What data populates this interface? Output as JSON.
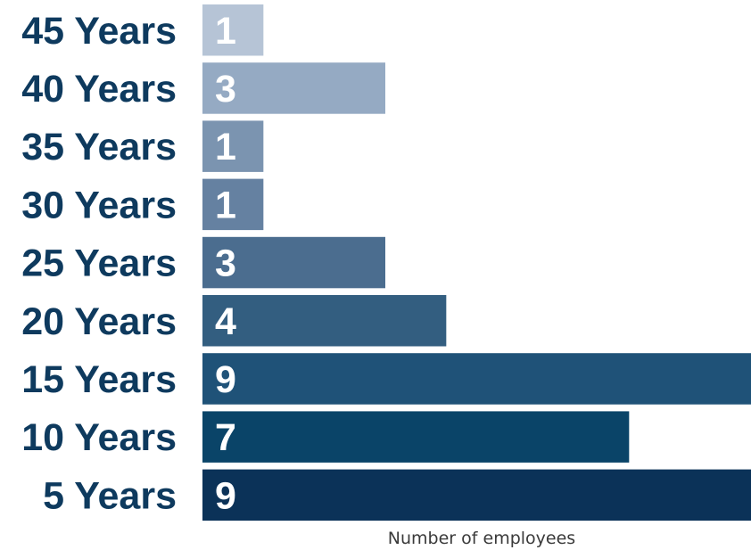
{
  "chart_data": {
    "type": "bar",
    "orientation": "horizontal",
    "categories": [
      "45 Years",
      "40 Years",
      "35 Years",
      "30 Years",
      "25 Years",
      "20 Years",
      "15 Years",
      "10 Years",
      "5 Years"
    ],
    "values": [
      1,
      3,
      1,
      1,
      3,
      4,
      9,
      7,
      9
    ],
    "data_labels": [
      "1",
      "3",
      "1",
      "1",
      "3",
      "4",
      "9",
      "7",
      "9"
    ],
    "bar_colors": [
      "#b6c4d6",
      "#95aac3",
      "#7b94b0",
      "#6581a1",
      "#4b6d8f",
      "#335e80",
      "#1f5278",
      "#0a4468",
      "#0b3258"
    ],
    "label_color": "#0e3a5e",
    "title": "",
    "xlabel": "Number of employees",
    "ylabel": "",
    "xlim": [
      0,
      9
    ],
    "grid": false,
    "legend": "none"
  }
}
